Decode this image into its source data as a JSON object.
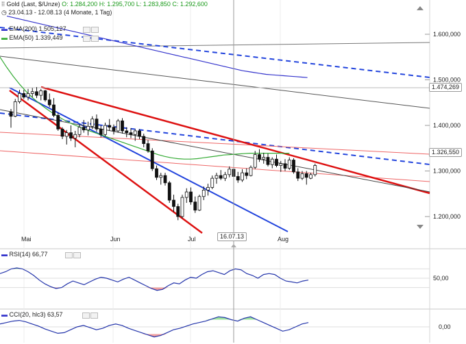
{
  "header": {
    "instrument": "Gold (Last, $/Unze)",
    "ohlc": [
      {
        "k": "O:",
        "v": "1.284,200"
      },
      {
        "k": "H:",
        "v": "1.295,700"
      },
      {
        "k": "L:",
        "v": "1.283,850"
      },
      {
        "k": "C:",
        "v": "1.292,600"
      }
    ],
    "range": "23.04.13 - 12.08.13 (4 Monate, 1 Tag)",
    "ema200": "EMA(200)  1.505,127",
    "ema50": "EMA(50)  1.339,449"
  },
  "price_labels": [
    "1.600,000",
    "1.500,000",
    "1.400,000",
    "1.300,000",
    "1.200,000"
  ],
  "tags": {
    "upper": "1.474,269",
    "last": "1.326,550",
    "crosshair_date": "16.07.13"
  },
  "x_labels": [
    "Mai",
    "Jun",
    "Jul",
    "Aug"
  ],
  "rsi": {
    "label": "RSI(14)  66,77",
    "scale": "50,00"
  },
  "cci": {
    "label": "CCI(20, hlc3)  63,57",
    "scale": "0,00"
  },
  "colors": {
    "ema200": "#3333cc",
    "ema50": "#33aa33",
    "trend_red": "#dd1111",
    "trend_blue": "#2244dd",
    "oversold_fill": "#ee8888",
    "overbought_fill": "#88dd88"
  },
  "chart_data": {
    "type": "candlestick",
    "ylim": [
      1180,
      1670
    ],
    "candles": [
      {
        "o": 1430,
        "h": 1436,
        "l": 1395,
        "c": 1420
      },
      {
        "o": 1420,
        "h": 1458,
        "l": 1418,
        "c": 1452
      },
      {
        "o": 1452,
        "h": 1478,
        "l": 1448,
        "c": 1470
      },
      {
        "o": 1470,
        "h": 1478,
        "l": 1458,
        "c": 1462
      },
      {
        "o": 1462,
        "h": 1480,
        "l": 1455,
        "c": 1470
      },
      {
        "o": 1470,
        "h": 1482,
        "l": 1462,
        "c": 1474
      },
      {
        "o": 1474,
        "h": 1484,
        "l": 1460,
        "c": 1466
      },
      {
        "o": 1466,
        "h": 1480,
        "l": 1455,
        "c": 1476
      },
      {
        "o": 1476,
        "h": 1478,
        "l": 1452,
        "c": 1456
      },
      {
        "o": 1456,
        "h": 1470,
        "l": 1440,
        "c": 1445
      },
      {
        "o": 1445,
        "h": 1460,
        "l": 1418,
        "c": 1422
      },
      {
        "o": 1422,
        "h": 1428,
        "l": 1388,
        "c": 1392
      },
      {
        "o": 1392,
        "h": 1396,
        "l": 1370,
        "c": 1376
      },
      {
        "o": 1376,
        "h": 1390,
        "l": 1358,
        "c": 1384
      },
      {
        "o": 1384,
        "h": 1400,
        "l": 1366,
        "c": 1372
      },
      {
        "o": 1372,
        "h": 1388,
        "l": 1352,
        "c": 1380
      },
      {
        "o": 1380,
        "h": 1402,
        "l": 1374,
        "c": 1396
      },
      {
        "o": 1396,
        "h": 1412,
        "l": 1384,
        "c": 1390
      },
      {
        "o": 1390,
        "h": 1408,
        "l": 1378,
        "c": 1398
      },
      {
        "o": 1398,
        "h": 1420,
        "l": 1392,
        "c": 1414
      },
      {
        "o": 1414,
        "h": 1424,
        "l": 1386,
        "c": 1392
      },
      {
        "o": 1392,
        "h": 1400,
        "l": 1374,
        "c": 1380
      },
      {
        "o": 1380,
        "h": 1406,
        "l": 1376,
        "c": 1400
      },
      {
        "o": 1400,
        "h": 1414,
        "l": 1388,
        "c": 1396
      },
      {
        "o": 1396,
        "h": 1402,
        "l": 1380,
        "c": 1388
      },
      {
        "o": 1388,
        "h": 1414,
        "l": 1384,
        "c": 1410
      },
      {
        "o": 1410,
        "h": 1416,
        "l": 1382,
        "c": 1388
      },
      {
        "o": 1388,
        "h": 1396,
        "l": 1374,
        "c": 1384
      },
      {
        "o": 1384,
        "h": 1394,
        "l": 1372,
        "c": 1380
      },
      {
        "o": 1380,
        "h": 1392,
        "l": 1366,
        "c": 1388
      },
      {
        "o": 1388,
        "h": 1392,
        "l": 1370,
        "c": 1376
      },
      {
        "o": 1376,
        "h": 1382,
        "l": 1352,
        "c": 1360
      },
      {
        "o": 1360,
        "h": 1368,
        "l": 1340,
        "c": 1344
      },
      {
        "o": 1344,
        "h": 1350,
        "l": 1300,
        "c": 1305
      },
      {
        "o": 1305,
        "h": 1312,
        "l": 1280,
        "c": 1286
      },
      {
        "o": 1286,
        "h": 1296,
        "l": 1270,
        "c": 1290
      },
      {
        "o": 1290,
        "h": 1296,
        "l": 1268,
        "c": 1274
      },
      {
        "o": 1274,
        "h": 1278,
        "l": 1230,
        "c": 1236
      },
      {
        "o": 1236,
        "h": 1248,
        "l": 1210,
        "c": 1222
      },
      {
        "o": 1222,
        "h": 1228,
        "l": 1192,
        "c": 1200
      },
      {
        "o": 1200,
        "h": 1248,
        "l": 1196,
        "c": 1242
      },
      {
        "o": 1242,
        "h": 1262,
        "l": 1230,
        "c": 1254
      },
      {
        "o": 1254,
        "h": 1264,
        "l": 1226,
        "c": 1232
      },
      {
        "o": 1232,
        "h": 1244,
        "l": 1208,
        "c": 1214
      },
      {
        "o": 1214,
        "h": 1248,
        "l": 1212,
        "c": 1244
      },
      {
        "o": 1244,
        "h": 1266,
        "l": 1236,
        "c": 1258
      },
      {
        "o": 1258,
        "h": 1272,
        "l": 1246,
        "c": 1264
      },
      {
        "o": 1264,
        "h": 1290,
        "l": 1260,
        "c": 1284
      },
      {
        "o": 1284,
        "h": 1296,
        "l": 1272,
        "c": 1290
      },
      {
        "o": 1290,
        "h": 1302,
        "l": 1280,
        "c": 1284
      },
      {
        "o": 1284,
        "h": 1298,
        "l": 1278,
        "c": 1292
      },
      {
        "o": 1292,
        "h": 1310,
        "l": 1286,
        "c": 1304
      },
      {
        "o": 1304,
        "h": 1312,
        "l": 1282,
        "c": 1288
      },
      {
        "o": 1288,
        "h": 1298,
        "l": 1274,
        "c": 1280
      },
      {
        "o": 1280,
        "h": 1304,
        "l": 1276,
        "c": 1296
      },
      {
        "o": 1296,
        "h": 1306,
        "l": 1282,
        "c": 1290
      },
      {
        "o": 1290,
        "h": 1312,
        "l": 1288,
        "c": 1308
      },
      {
        "o": 1308,
        "h": 1344,
        "l": 1304,
        "c": 1336
      },
      {
        "o": 1336,
        "h": 1348,
        "l": 1320,
        "c": 1326
      },
      {
        "o": 1326,
        "h": 1340,
        "l": 1316,
        "c": 1330
      },
      {
        "o": 1330,
        "h": 1338,
        "l": 1310,
        "c": 1314
      },
      {
        "o": 1314,
        "h": 1330,
        "l": 1306,
        "c": 1326
      },
      {
        "o": 1326,
        "h": 1336,
        "l": 1308,
        "c": 1312
      },
      {
        "o": 1312,
        "h": 1322,
        "l": 1298,
        "c": 1316
      },
      {
        "o": 1316,
        "h": 1326,
        "l": 1300,
        "c": 1306
      },
      {
        "o": 1306,
        "h": 1330,
        "l": 1302,
        "c": 1324
      },
      {
        "o": 1324,
        "h": 1328,
        "l": 1294,
        "c": 1298
      },
      {
        "o": 1298,
        "h": 1306,
        "l": 1278,
        "c": 1284
      },
      {
        "o": 1284,
        "h": 1300,
        "l": 1280,
        "c": 1294
      },
      {
        "o": 1294,
        "h": 1300,
        "l": 1270,
        "c": 1286
      },
      {
        "o": 1284,
        "h": 1296,
        "l": 1282,
        "c": 1292
      },
      {
        "o": 1292,
        "h": 1316,
        "l": 1288,
        "c": 1312
      }
    ],
    "ema200": [
      1640,
      1637,
      1634,
      1631,
      1628,
      1625,
      1622,
      1619,
      1616,
      1613,
      1610,
      1607,
      1604,
      1601,
      1598,
      1595,
      1592,
      1589,
      1586,
      1583,
      1580,
      1577,
      1574,
      1571,
      1568,
      1565,
      1562,
      1559,
      1556,
      1553,
      1550,
      1547,
      1544,
      1541,
      1538,
      1535,
      1532,
      1529,
      1526,
      1523,
      1520,
      1518,
      1516,
      1514,
      1512,
      1511,
      1510,
      1509,
      1508,
      1507,
      1506,
      1505
    ],
    "ema50": [
      1550,
      1528,
      1508,
      1490,
      1474,
      1460,
      1448,
      1437,
      1427,
      1418,
      1410,
      1403,
      1397,
      1391,
      1386,
      1381,
      1376,
      1371,
      1366,
      1361,
      1356,
      1351,
      1346,
      1341,
      1336,
      1332,
      1329,
      1327,
      1326,
      1326,
      1327,
      1329,
      1331,
      1333,
      1335,
      1336,
      1337,
      1338,
      1339,
      1339,
      1339,
      1339,
      1339,
      1339,
      1339
    ],
    "rsi": [
      60,
      64,
      70,
      72,
      70,
      64,
      56,
      46,
      38,
      32,
      28,
      30,
      38,
      44,
      40,
      36,
      42,
      48,
      52,
      50,
      46,
      42,
      48,
      52,
      46,
      40,
      34,
      28,
      24,
      26,
      34,
      40,
      38,
      46,
      52,
      50,
      58,
      64,
      66,
      62,
      58,
      66,
      70,
      68,
      60,
      56,
      50,
      58,
      60,
      58,
      50,
      44,
      42,
      40,
      44,
      46
    ],
    "cci": [
      40,
      60,
      80,
      90,
      70,
      40,
      10,
      -30,
      -60,
      -90,
      -80,
      -40,
      0,
      20,
      -10,
      -40,
      -20,
      20,
      40,
      20,
      -20,
      -50,
      -80,
      -110,
      -140,
      -120,
      -80,
      -40,
      -20,
      10,
      40,
      60,
      80,
      110,
      140,
      130,
      100,
      80,
      120,
      140,
      100,
      60,
      20,
      -20,
      -60,
      -40,
      0,
      40,
      60
    ]
  }
}
